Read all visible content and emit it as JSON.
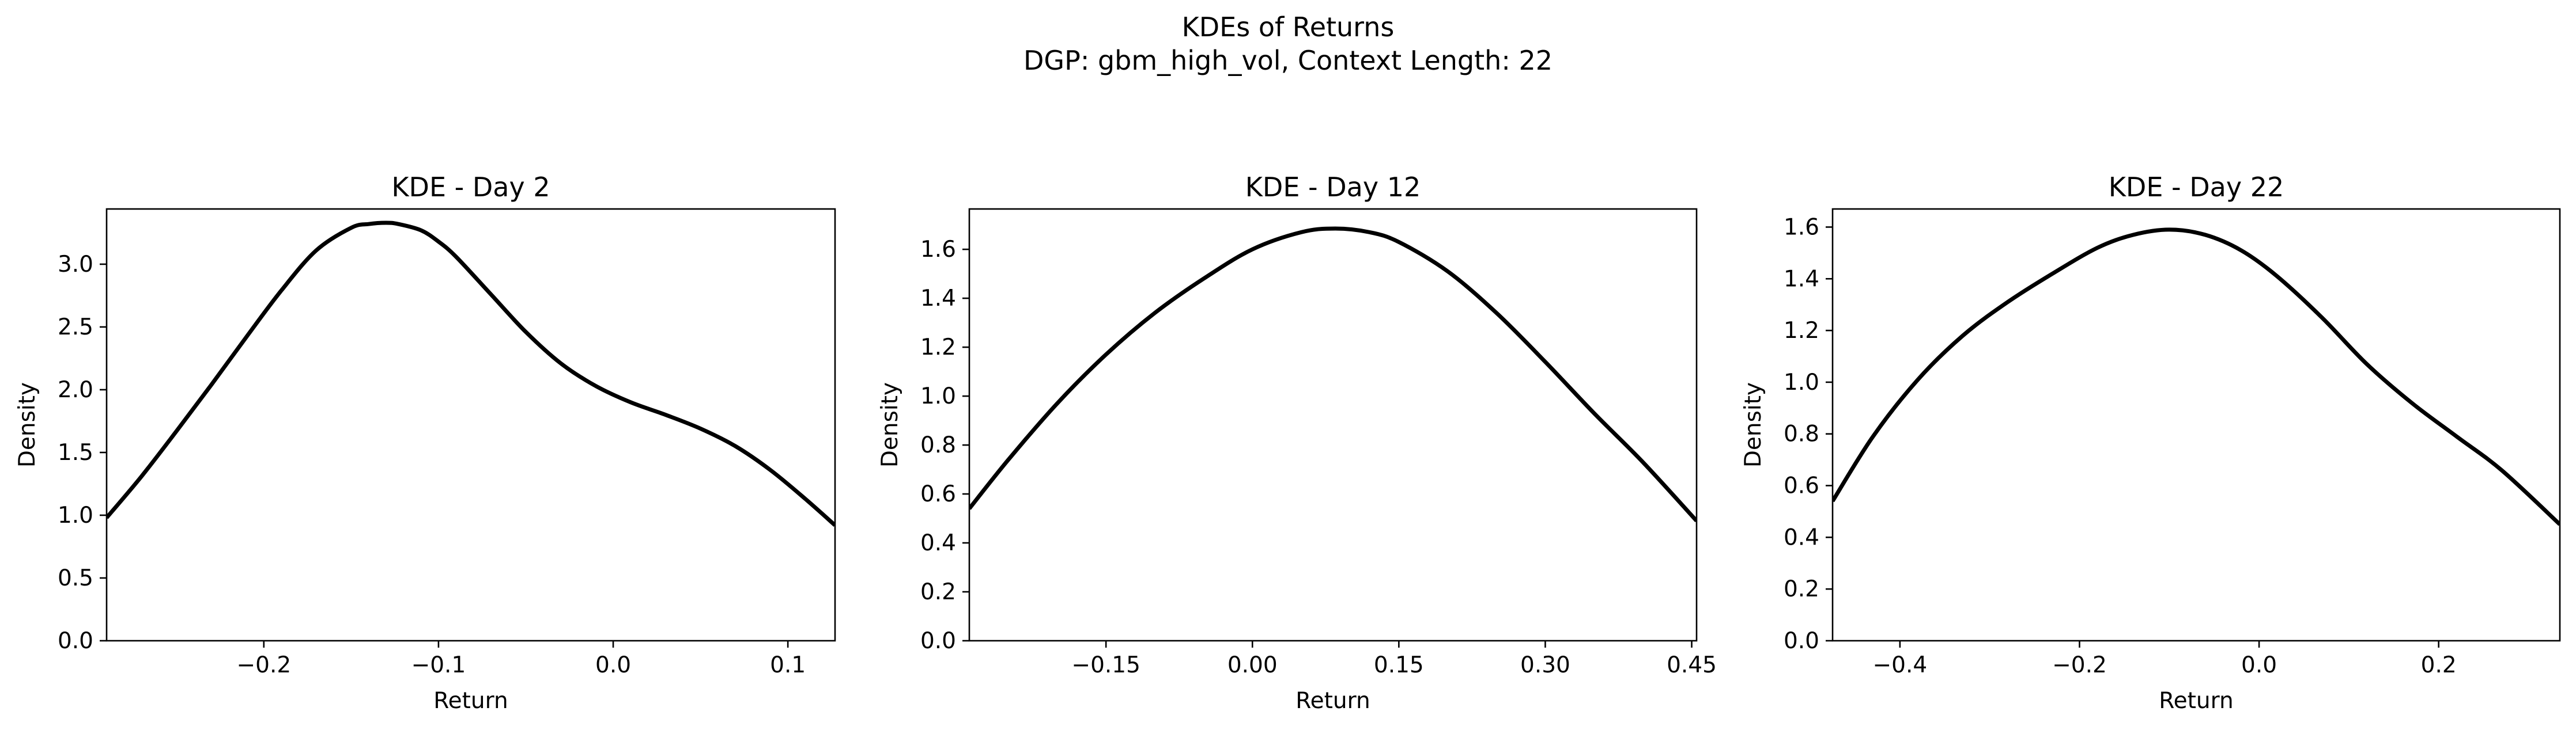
{
  "figure": {
    "title_line1": "KDEs of Returns",
    "title_line2": "DGP: gbm_high_vol, Context Length: 22"
  },
  "colors": {
    "line": "#000000",
    "axes": "#000000",
    "background": "#ffffff"
  },
  "chart_data": [
    {
      "type": "line",
      "title": "KDE - Day 2",
      "xlabel": "Return",
      "ylabel": "Density",
      "xlim": [
        -0.29,
        0.127
      ],
      "ylim": [
        0.0,
        3.44
      ],
      "xticks": [
        -0.2,
        -0.1,
        0.0,
        0.1
      ],
      "xtick_labels": [
        "−0.2",
        "−0.1",
        "0.0",
        "0.1"
      ],
      "yticks": [
        0.0,
        0.5,
        1.0,
        1.5,
        2.0,
        2.5,
        3.0
      ],
      "ytick_labels": [
        "0.0",
        "0.5",
        "1.0",
        "1.5",
        "2.0",
        "2.5",
        "3.0"
      ],
      "grid": false,
      "series": [
        {
          "x": [
            -0.29,
            -0.27,
            -0.25,
            -0.23,
            -0.21,
            -0.19,
            -0.17,
            -0.15,
            -0.14,
            -0.13,
            -0.123,
            -0.11,
            -0.1,
            -0.09,
            -0.07,
            -0.05,
            -0.03,
            -0.01,
            0.01,
            0.03,
            0.05,
            0.07,
            0.09,
            0.11,
            0.127
          ],
          "y": [
            0.98,
            1.31,
            1.67,
            2.04,
            2.42,
            2.79,
            3.11,
            3.29,
            3.32,
            3.33,
            3.32,
            3.27,
            3.18,
            3.06,
            2.76,
            2.46,
            2.21,
            2.03,
            1.9,
            1.8,
            1.69,
            1.55,
            1.36,
            1.13,
            0.92
          ]
        }
      ]
    },
    {
      "type": "line",
      "title": "KDE - Day 12",
      "xlabel": "Return",
      "ylabel": "Density",
      "xlim": [
        -0.29,
        0.455
      ],
      "ylim": [
        0.0,
        1.765
      ],
      "xticks": [
        -0.15,
        0.0,
        0.15,
        0.3,
        0.45
      ],
      "xtick_labels": [
        "−0.15",
        "0.00",
        "0.15",
        "0.30",
        "0.45"
      ],
      "yticks": [
        0.0,
        0.2,
        0.4,
        0.6,
        0.8,
        1.0,
        1.2,
        1.4,
        1.6
      ],
      "ytick_labels": [
        "0.0",
        "0.2",
        "0.4",
        "0.6",
        "0.8",
        "1.0",
        "1.2",
        "1.4",
        "1.6"
      ],
      "grid": false,
      "series": [
        {
          "x": [
            -0.29,
            -0.25,
            -0.2,
            -0.15,
            -0.1,
            -0.05,
            0.0,
            0.05,
            0.085,
            0.12,
            0.15,
            0.2,
            0.25,
            0.3,
            0.35,
            0.4,
            0.455
          ],
          "y": [
            0.54,
            0.74,
            0.97,
            1.17,
            1.34,
            1.48,
            1.6,
            1.67,
            1.685,
            1.67,
            1.63,
            1.51,
            1.34,
            1.14,
            0.93,
            0.73,
            0.49
          ]
        }
      ]
    },
    {
      "type": "line",
      "title": "KDE - Day 22",
      "xlabel": "Return",
      "ylabel": "Density",
      "xlim": [
        -0.475,
        0.335
      ],
      "ylim": [
        0.0,
        1.67
      ],
      "xticks": [
        -0.4,
        -0.2,
        0.0,
        0.2
      ],
      "xtick_labels": [
        "−0.4",
        "−0.2",
        "0.0",
        "0.2"
      ],
      "yticks": [
        0.0,
        0.2,
        0.4,
        0.6,
        0.8,
        1.0,
        1.2,
        1.4,
        1.6
      ],
      "ytick_labels": [
        "0.0",
        "0.2",
        "0.4",
        "0.6",
        "0.8",
        "1.0",
        "1.2",
        "1.4",
        "1.6"
      ],
      "grid": false,
      "series": [
        {
          "x": [
            -0.475,
            -0.43,
            -0.38,
            -0.33,
            -0.28,
            -0.23,
            -0.18,
            -0.14,
            -0.1,
            -0.06,
            -0.02,
            0.02,
            0.07,
            0.12,
            0.17,
            0.22,
            0.27,
            0.335
          ],
          "y": [
            0.54,
            0.79,
            1.01,
            1.18,
            1.31,
            1.42,
            1.52,
            1.57,
            1.59,
            1.57,
            1.51,
            1.41,
            1.25,
            1.07,
            0.92,
            0.79,
            0.66,
            0.45
          ]
        }
      ]
    }
  ]
}
